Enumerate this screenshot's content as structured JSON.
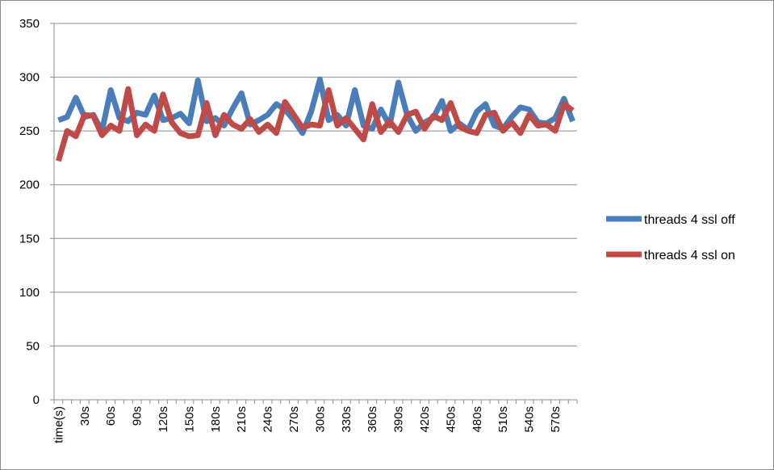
{
  "chart_data": {
    "type": "line",
    "title": "",
    "xlabel": "",
    "ylabel": "",
    "ylim": [
      0,
      350
    ],
    "yticks": [
      0,
      50,
      100,
      150,
      200,
      250,
      300,
      350
    ],
    "grid": true,
    "legend_position": "right",
    "x": [
      "time(s)",
      "10s",
      "20s",
      "30s",
      "40s",
      "50s",
      "60s",
      "70s",
      "80s",
      "90s",
      "100s",
      "110s",
      "120s",
      "130s",
      "140s",
      "150s",
      "160s",
      "170s",
      "180s",
      "190s",
      "200s",
      "210s",
      "220s",
      "230s",
      "240s",
      "250s",
      "260s",
      "270s",
      "280s",
      "290s",
      "300s",
      "310s",
      "320s",
      "330s",
      "340s",
      "350s",
      "360s",
      "370s",
      "380s",
      "390s",
      "400s",
      "410s",
      "420s",
      "430s",
      "440s",
      "450s",
      "460s",
      "470s",
      "480s",
      "490s",
      "500s",
      "510s",
      "520s",
      "530s",
      "540s",
      "550s",
      "560s",
      "570s",
      "580s",
      "590s"
    ],
    "x_tick_labels": [
      "time(s)",
      "",
      "",
      "30s",
      "",
      "",
      "60s",
      "",
      "",
      "90s",
      "",
      "",
      "120s",
      "",
      "",
      "150s",
      "",
      "",
      "180s",
      "",
      "",
      "210s",
      "",
      "",
      "240s",
      "",
      "",
      "270s",
      "",
      "",
      "300s",
      "",
      "",
      "330s",
      "",
      "",
      "360s",
      "",
      "",
      "390s",
      "",
      "",
      "420s",
      "",
      "",
      "450s",
      "",
      "",
      "480s",
      "",
      "",
      "510s",
      "",
      "",
      "540s",
      "",
      "",
      "570s",
      "",
      ""
    ],
    "series": [
      {
        "name": "threads 4 ssl off",
        "color": "#4A7EBB",
        "values": [
          260,
          263,
          281,
          263,
          265,
          250,
          288,
          262,
          259,
          267,
          265,
          283,
          260,
          262,
          266,
          257,
          297,
          259,
          262,
          255,
          271,
          285,
          256,
          260,
          265,
          275,
          270,
          260,
          248,
          268,
          298,
          260,
          265,
          255,
          288,
          255,
          252,
          270,
          255,
          295,
          265,
          250,
          258,
          262,
          278,
          250,
          257,
          251,
          268,
          275,
          255,
          252,
          263,
          272,
          270,
          258,
          257,
          262,
          280,
          259
        ]
      },
      {
        "name": "threads 4 ssl on",
        "color": "#BE4B48",
        "values": [
          222,
          250,
          245,
          265,
          264,
          246,
          255,
          250,
          289,
          246,
          256,
          250,
          284,
          258,
          248,
          245,
          246,
          276,
          246,
          265,
          256,
          252,
          261,
          249,
          256,
          248,
          277,
          265,
          253,
          256,
          255,
          288,
          255,
          262,
          252,
          242,
          275,
          249,
          259,
          249,
          265,
          268,
          252,
          264,
          260,
          276,
          254,
          250,
          248,
          265,
          267,
          250,
          258,
          248,
          265,
          255,
          256,
          250,
          275,
          269
        ]
      }
    ]
  }
}
